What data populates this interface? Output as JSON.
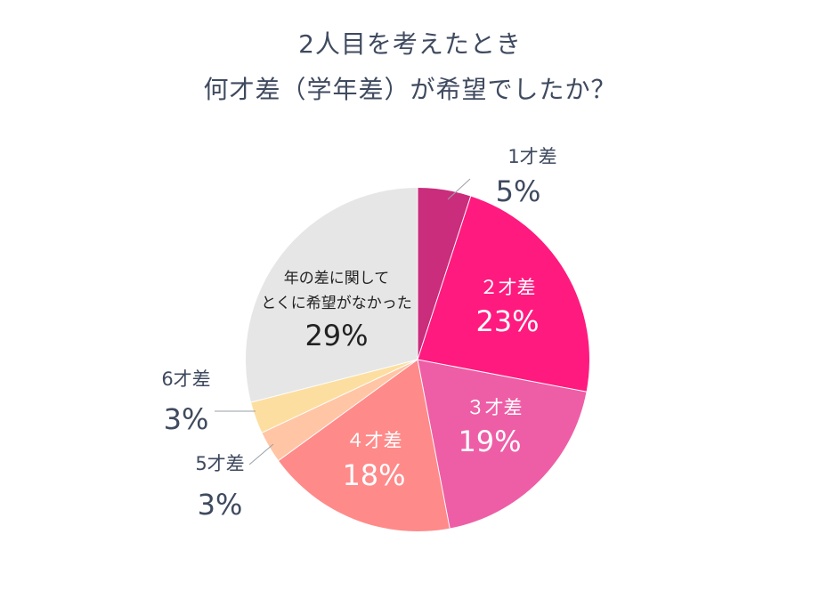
{
  "title": {
    "line1": "2人目を考えたとき",
    "line2": "何才差（学年差）が希望でしたか？"
  },
  "chart_data": {
    "type": "pie",
    "title": "2人目を考えたとき 何才差（学年差）が希望でしたか？",
    "start": "12 o'clock, clockwise",
    "slices": [
      {
        "label": "1才差",
        "value": 5,
        "pct_text": "5%",
        "color": "#c92d7c"
      },
      {
        "label": "２才差",
        "value": 23,
        "pct_text": "23%",
        "color": "#ff1a7f"
      },
      {
        "label": "３才差",
        "value": 19,
        "pct_text": "19%",
        "color": "#ee5ea6"
      },
      {
        "label": "４才差",
        "value": 18,
        "pct_text": "18%",
        "color": "#ff8a8a"
      },
      {
        "label": "5才差",
        "value": 3,
        "pct_text": "3%",
        "color": "#ffc5a5"
      },
      {
        "label": "6才差",
        "value": 3,
        "pct_text": "3%",
        "color": "#fcdfa0"
      },
      {
        "label_lines": [
          "年の差に関して",
          "とくに希望がなかった"
        ],
        "value": 29,
        "pct_text": "29%",
        "color": "#e6e6e6"
      }
    ]
  }
}
